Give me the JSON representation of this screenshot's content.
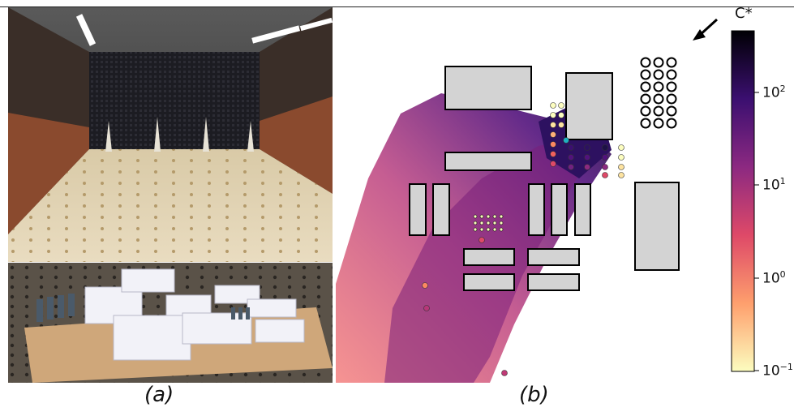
{
  "figure": {
    "captions": {
      "a": "(a)",
      "b": "(b)"
    },
    "colorbar": {
      "label": "C*",
      "scale": "log",
      "ticks": [
        {
          "base": "10",
          "exp": "2"
        },
        {
          "base": "10",
          "exp": "1"
        },
        {
          "base": "10",
          "exp": "0"
        },
        {
          "base": "10",
          "exp": "−1"
        }
      ],
      "colormap": [
        "#fcfdbf",
        "#fe9f6d",
        "#de4968",
        "#8c2981",
        "#3b0f70",
        "#000004"
      ]
    },
    "colors": {
      "building_fill": "#d3d3d3",
      "plume_low": "#f1605d",
      "plume_high": "#2d1160"
    }
  }
}
